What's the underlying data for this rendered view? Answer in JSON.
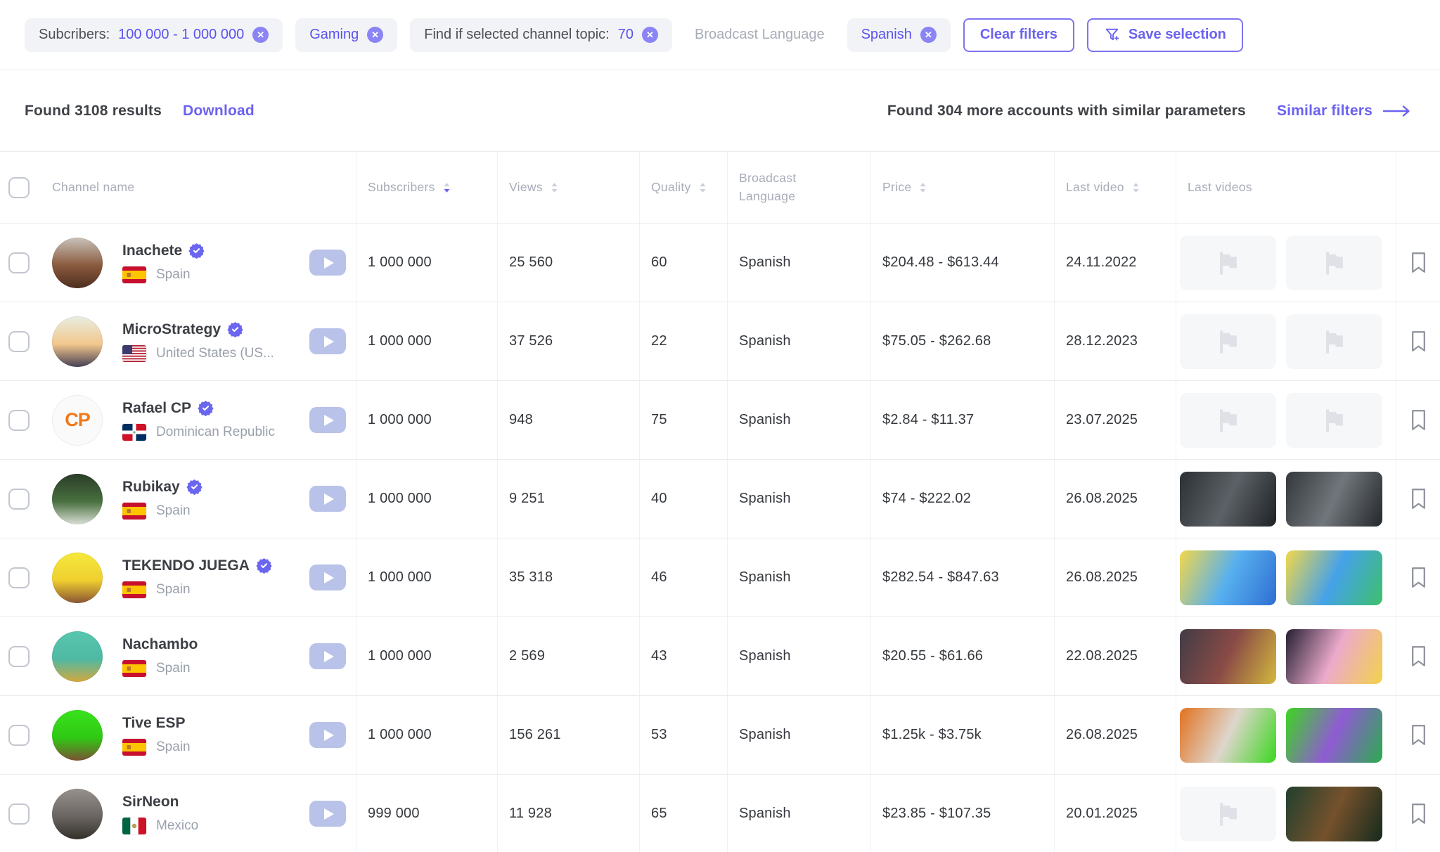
{
  "colors": {
    "accent": "#6b62f0",
    "chip_bg": "#f2f3f7",
    "text_dark": "#3f4246",
    "text_gray": "#a7acb8"
  },
  "filter_bar": {
    "chips": [
      {
        "prefix": "Subcribers: ",
        "value": "100 000 - 1 000 000"
      },
      {
        "prefix": "",
        "value": "Gaming"
      },
      {
        "prefix": "Find if selected channel topic: ",
        "value": "70"
      },
      {
        "prefix": "",
        "value": "Spanish"
      }
    ],
    "inactive_filter_label": "Broadcast Language",
    "clear_filters_label": "Clear filters",
    "save_selection_label": "Save selection"
  },
  "results_bar": {
    "found_results": "Found 3108 results",
    "download_label": "Download",
    "more_accounts": "Found 304 more accounts with similar parameters",
    "similar_filters_label": "Similar filters"
  },
  "table": {
    "headers": [
      {
        "label": "Channel name",
        "sortable": false,
        "sort": null
      },
      {
        "label": "Subscribers",
        "sortable": true,
        "sort": "desc"
      },
      {
        "label": "Views",
        "sortable": true,
        "sort": null
      },
      {
        "label": "Quality",
        "sortable": true,
        "sort": null
      },
      {
        "label": "Broadcast Language",
        "sortable": false,
        "sort": null
      },
      {
        "label": "Price",
        "sortable": true,
        "sort": null
      },
      {
        "label": "Last video",
        "sortable": true,
        "sort": null
      },
      {
        "label": "Last videos",
        "sortable": false,
        "sort": null
      }
    ],
    "rows": [
      {
        "name": "Inachete",
        "verified": true,
        "country": "Spain",
        "flag": "es",
        "avatar": {
          "colors": [
            "#c9c2bb",
            "#8a5a3d",
            "#4e2e1f"
          ]
        },
        "subscribers": "1 000 000",
        "views": "25 560",
        "quality": "60",
        "language": "Spanish",
        "price": "$204.48 - $613.44",
        "last_video": "24.11.2022",
        "last_videos": [
          {
            "placeholder": true
          },
          {
            "placeholder": true
          }
        ]
      },
      {
        "name": "MicroStrategy",
        "verified": true,
        "country": "United States (US...",
        "flag": "us",
        "avatar": {
          "colors": [
            "#e8ede2",
            "#f2c78c",
            "#474055"
          ]
        },
        "subscribers": "1 000 000",
        "views": "37 526",
        "quality": "22",
        "language": "Spanish",
        "price": "$75.05 - $262.68",
        "last_video": "28.12.2023",
        "last_videos": [
          {
            "placeholder": true
          },
          {
            "placeholder": true
          }
        ]
      },
      {
        "name": "Rafael CP",
        "verified": true,
        "country": "Dominican Republic",
        "flag": "do",
        "avatar": {
          "colors": [
            "#fafafa",
            "#f1f1f1"
          ],
          "initials": "CP",
          "initials_color": "#f07818"
        },
        "subscribers": "1 000 000",
        "views": "948",
        "quality": "75",
        "language": "Spanish",
        "price": "$2.84 - $11.37",
        "last_video": "23.07.2025",
        "last_videos": [
          {
            "placeholder": true
          },
          {
            "placeholder": true
          }
        ]
      },
      {
        "name": "Rubikay",
        "verified": true,
        "country": "Spain",
        "flag": "es",
        "avatar": {
          "colors": [
            "#2a3c28",
            "#49703f",
            "#d8ded4"
          ]
        },
        "subscribers": "1 000 000",
        "views": "9 251",
        "quality": "40",
        "language": "Spanish",
        "price": "$74 - $222.02",
        "last_video": "26.08.2025",
        "last_videos": [
          {
            "colors": [
              "#2c3034",
              "#5b6166",
              "#1f2225"
            ]
          },
          {
            "colors": [
              "#34383c",
              "#70767b",
              "#24272b"
            ]
          }
        ]
      },
      {
        "name": "TEKENDO JUEGA",
        "verified": true,
        "country": "Spain",
        "flag": "es",
        "avatar": {
          "colors": [
            "#f5e93c",
            "#efcf2f",
            "#8a5433"
          ]
        },
        "subscribers": "1 000 000",
        "views": "35 318",
        "quality": "46",
        "language": "Spanish",
        "price": "$282.54 - $847.63",
        "last_video": "26.08.2025",
        "last_videos": [
          {
            "colors": [
              "#f3d74a",
              "#57b0ef",
              "#2e6ed2"
            ]
          },
          {
            "colors": [
              "#f3d74a",
              "#45a2e9",
              "#3ec06c"
            ]
          }
        ]
      },
      {
        "name": "Nachambo",
        "verified": false,
        "country": "Spain",
        "flag": "es",
        "avatar": {
          "colors": [
            "#58c6ae",
            "#4fb9a3",
            "#d2a83e"
          ]
        },
        "subscribers": "1 000 000",
        "views": "2 569",
        "quality": "43",
        "language": "Spanish",
        "price": "$20.55 - $61.66",
        "last_video": "22.08.2025",
        "last_videos": [
          {
            "colors": [
              "#403c46",
              "#8a4b46",
              "#d3b83e"
            ]
          },
          {
            "colors": [
              "#241f33",
              "#ecaacb",
              "#f2d24a"
            ]
          }
        ]
      },
      {
        "name": "Tive ESP",
        "verified": false,
        "country": "Spain",
        "flag": "es",
        "avatar": {
          "colors": [
            "#39e21c",
            "#2fc914",
            "#7a5233"
          ]
        },
        "subscribers": "1 000 000",
        "views": "156 261",
        "quality": "53",
        "language": "Spanish",
        "price": "$1.25k - $3.75k",
        "last_video": "26.08.2025",
        "last_videos": [
          {
            "colors": [
              "#e2711f",
              "#ded6cc",
              "#3bd71e"
            ]
          },
          {
            "colors": [
              "#3bd71e",
              "#8f5bd3",
              "#2cab4e"
            ]
          }
        ]
      },
      {
        "name": "SirNeon",
        "verified": false,
        "country": "Mexico",
        "flag": "mx",
        "avatar": {
          "colors": [
            "#97918d",
            "#6a6562",
            "#333029"
          ]
        },
        "subscribers": "999 000",
        "views": "11 928",
        "quality": "65",
        "language": "Spanish",
        "price": "$23.85 - $107.35",
        "last_video": "20.01.2025",
        "last_videos": [
          {
            "placeholder": true
          },
          {
            "colors": [
              "#20402e",
              "#75512c",
              "#152a1d"
            ]
          }
        ]
      }
    ]
  }
}
